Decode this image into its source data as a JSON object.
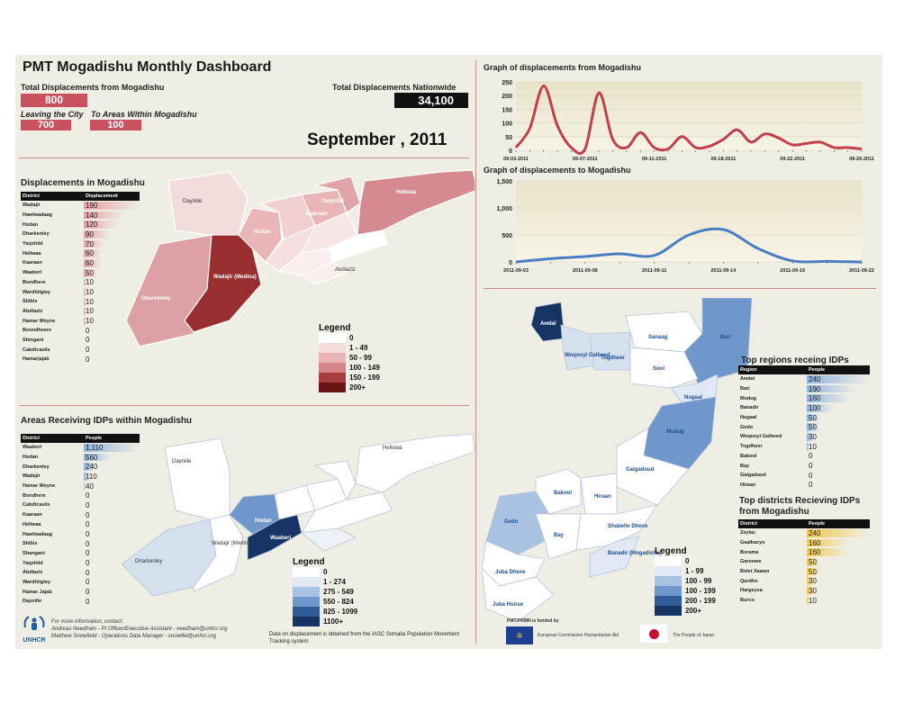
{
  "header": {
    "title": "PMT Mogadishu Monthly Dashboard",
    "total_from_label": "Total Displacements from Mogadishu",
    "total_from_value": "800",
    "leaving_label": "Leaving the City",
    "leaving_value": "700",
    "within_label": "To Areas Within Mogadishu",
    "within_value": "100",
    "nationwide_label": "Total Displacements Nationwide",
    "nationwide_value": "34,100",
    "month": "September , 2011"
  },
  "graph_from": {
    "title": "Graph of displacements from Mogadishu",
    "yticks": [
      "250",
      "200",
      "150",
      "100",
      "50",
      "0"
    ],
    "xticks": [
      "09-03-2011",
      "09-07-2011",
      "09-11-2011",
      "09-18-2011",
      "09-22-2011",
      "09-26-2011"
    ],
    "color": "#c0404c"
  },
  "graph_to": {
    "title": "Graph of displacements to Mogadishu",
    "yticks": [
      "1,500",
      "1,000",
      "500",
      "0"
    ],
    "xticks": [
      "2011-09-03",
      "2011-09-08",
      "2011-09-11",
      "2011-09-14",
      "2011-09-19",
      "2011-09-22"
    ],
    "color": "#4a7ec4"
  },
  "chart_data": [
    {
      "type": "line",
      "title": "Graph of displacements from Mogadishu",
      "ylim": [
        0,
        250
      ],
      "x": [
        "09-01",
        "09-02",
        "09-03",
        "09-04",
        "09-05",
        "09-06",
        "09-07",
        "09-08",
        "09-09",
        "09-10",
        "09-11",
        "09-12",
        "09-13",
        "09-14",
        "09-15",
        "09-16",
        "09-17",
        "09-18",
        "09-19",
        "09-20",
        "09-21",
        "09-22",
        "09-23",
        "09-24",
        "09-25",
        "09-26"
      ],
      "values": [
        10,
        80,
        235,
        90,
        10,
        5,
        210,
        40,
        10,
        65,
        10,
        5,
        50,
        10,
        15,
        40,
        75,
        30,
        60,
        45,
        20,
        25,
        30,
        10,
        10,
        5
      ]
    },
    {
      "type": "line",
      "title": "Graph of displacements to Mogadishu",
      "ylim": [
        0,
        1500
      ],
      "x": [
        "2011-09-03",
        "2011-09-05",
        "2011-09-07",
        "2011-09-09",
        "2011-09-11",
        "2011-09-13",
        "2011-09-14",
        "2011-09-16",
        "2011-09-18",
        "2011-09-20",
        "2011-09-22"
      ],
      "values": [
        0,
        60,
        100,
        150,
        120,
        500,
        600,
        250,
        20,
        10,
        0
      ]
    }
  ],
  "displacements": {
    "title": "Displacements in Mogadishu",
    "col1": "District",
    "col2": "Displacement",
    "bar_color": "#e8a0a8",
    "max": 190,
    "rows": [
      {
        "district": "Wadajir",
        "value": "190",
        "n": 190
      },
      {
        "district": "Hawlwadaag",
        "value": "140",
        "n": 140
      },
      {
        "district": "Hodan",
        "value": "120",
        "n": 120
      },
      {
        "district": "Dharkenley",
        "value": "90",
        "n": 90
      },
      {
        "district": "Yaqshiid",
        "value": "70",
        "n": 70
      },
      {
        "district": "Heliwaa",
        "value": "60",
        "n": 60
      },
      {
        "district": "Kaaraan",
        "value": "60",
        "n": 60
      },
      {
        "district": "Waaberi",
        "value": "50",
        "n": 50
      },
      {
        "district": "Bondhere",
        "value": "10",
        "n": 10
      },
      {
        "district": "Wardhiigley",
        "value": "10",
        "n": 10
      },
      {
        "district": "Shibis",
        "value": "10",
        "n": 10
      },
      {
        "district": "Abdiaziz",
        "value": "10",
        "n": 10
      },
      {
        "district": "Hamar Weyne",
        "value": "10",
        "n": 10
      },
      {
        "district": "Boondheere",
        "value": "0",
        "n": 0
      },
      {
        "district": "Shingani",
        "value": "0",
        "n": 0
      },
      {
        "district": "Cabdicasiis",
        "value": "0",
        "n": 0
      },
      {
        "district": "Hamarjajab",
        "value": "0",
        "n": 0
      }
    ]
  },
  "legend_red": {
    "title": "Legend",
    "items": [
      {
        "label": "0",
        "color": "#ffffff"
      },
      {
        "label": "1 - 49",
        "color": "#f4dcdc"
      },
      {
        "label": "50 - 99",
        "color": "#e9b5b7"
      },
      {
        "label": "100 - 149",
        "color": "#d58487"
      },
      {
        "label": "150 - 199",
        "color": "#a83c3e"
      },
      {
        "label": "200+",
        "color": "#6b1416"
      }
    ]
  },
  "receiving": {
    "title": "Areas Receiving IDPs within Mogadishu",
    "col1": "District",
    "col2": "People",
    "bar_color": "#8fb3dd",
    "max": 1110,
    "rows": [
      {
        "district": "Waaberi",
        "value": "1,110",
        "n": 1110
      },
      {
        "district": "Hodan",
        "value": "560",
        "n": 560
      },
      {
        "district": "Dharkenley",
        "value": "240",
        "n": 240
      },
      {
        "district": "Wadajir",
        "value": "110",
        "n": 110
      },
      {
        "district": "Hamar Weyne",
        "value": "40",
        "n": 40
      },
      {
        "district": "Bondhere",
        "value": "0",
        "n": 0
      },
      {
        "district": "Cabdicasiis",
        "value": "0",
        "n": 0
      },
      {
        "district": "Kaaraan",
        "value": "0",
        "n": 0
      },
      {
        "district": "Heliwaa",
        "value": "0",
        "n": 0
      },
      {
        "district": "Hawlwadaag",
        "value": "0",
        "n": 0
      },
      {
        "district": "Shibis",
        "value": "0",
        "n": 0
      },
      {
        "district": "Shangani",
        "value": "0",
        "n": 0
      },
      {
        "district": "Yaqshiid",
        "value": "0",
        "n": 0
      },
      {
        "district": "Abdiaziz",
        "value": "0",
        "n": 0
      },
      {
        "district": "Wardhiigley",
        "value": "0",
        "n": 0
      },
      {
        "district": "Hamar Jajab",
        "value": "0",
        "n": 0
      },
      {
        "district": "Dayniile",
        "value": "0",
        "n": 0
      }
    ]
  },
  "legend_blue_mog": {
    "title": "Legend",
    "items": [
      {
        "label": "0",
        "color": "#ffffff"
      },
      {
        "label": "1 - 274",
        "color": "#dfe8f4"
      },
      {
        "label": "275 - 549",
        "color": "#a9c2e2"
      },
      {
        "label": "550 - 824",
        "color": "#6f97cb"
      },
      {
        "label": "825 - 1099",
        "color": "#2f5c98"
      },
      {
        "label": "1100+",
        "color": "#163564"
      }
    ]
  },
  "legend_blue_som": {
    "title": "Legend",
    "items": [
      {
        "label": "0",
        "color": "#ffffff"
      },
      {
        "label": "1 - 99",
        "color": "#dfe8f4"
      },
      {
        "label": "100 - 99",
        "color": "#a9c2e2"
      },
      {
        "label": "100 - 199",
        "color": "#6f97cb"
      },
      {
        "label": "200 - 199",
        "color": "#2f5c98"
      },
      {
        "label": "200+",
        "color": "#163564"
      }
    ]
  },
  "top_regions": {
    "title": "Top regions receing IDPs",
    "col1": "Region",
    "col2": "People",
    "bar_color": "#8fb3dd",
    "max": 240,
    "rows": [
      {
        "name": "Awdal",
        "value": "240",
        "n": 240
      },
      {
        "name": "Bari",
        "value": "190",
        "n": 190
      },
      {
        "name": "Mudug",
        "value": "160",
        "n": 160
      },
      {
        "name": "Banadir",
        "value": "100",
        "n": 100
      },
      {
        "name": "Nugaal",
        "value": "50",
        "n": 50
      },
      {
        "name": "Gedo",
        "value": "50",
        "n": 50
      },
      {
        "name": "Woqooyi Galbeed",
        "value": "30",
        "n": 30
      },
      {
        "name": "Togdheer",
        "value": "10",
        "n": 10
      },
      {
        "name": "Bakool",
        "value": "0",
        "n": 0
      },
      {
        "name": "Bay",
        "value": "0",
        "n": 0
      },
      {
        "name": "Galgaduud",
        "value": "0",
        "n": 0
      },
      {
        "name": "Hiraan",
        "value": "0",
        "n": 0
      }
    ]
  },
  "top_districts": {
    "title": "Top districts Recieving IDPs from Mogadishu",
    "col1": "District",
    "col2": "People",
    "bar_color": "#f2c94c",
    "max": 240,
    "rows": [
      {
        "name": "Zeylac",
        "value": "240",
        "n": 240
      },
      {
        "name": "Gaalkacyo",
        "value": "160",
        "n": 160
      },
      {
        "name": "Borama",
        "value": "160",
        "n": 160
      },
      {
        "name": "Garoowe",
        "value": "50",
        "n": 50
      },
      {
        "name": "Belet Xaawo",
        "value": "50",
        "n": 50
      },
      {
        "name": "Qardho",
        "value": "30",
        "n": 30
      },
      {
        "name": "Hargeysa",
        "value": "30",
        "n": 30
      },
      {
        "name": "Burco",
        "value": "10",
        "n": 10
      }
    ]
  },
  "mog_labels": {
    "heliwaa": "Heliwaa",
    "dayniile": "Dayniile",
    "yaqshiid": "Yaqshiid",
    "kaaraan": "Kaaraan",
    "hodan": "Hodan",
    "wadajir": "Wadajir (Medina)",
    "dharkenley": "Dharkenley",
    "waaberi": "Waaberi",
    "abdiaziz": "Abdiaziz"
  },
  "somalia_labels": {
    "awdal": "Awdal",
    "woqooyi": "Woqooyi Galbeed",
    "togdheer": "Togdheer",
    "sanaag": "Sanaag",
    "bari": "Bari",
    "sool": "Sool",
    "nugaal": "Nugaal",
    "mudug": "Mudug",
    "galgaduud": "Galgaduud",
    "bakool": "Bakool",
    "hiraan": "Hiraan",
    "gedo": "Gedo",
    "bay": "Bay",
    "shabelle_dhexe": "Shabelle Dhexe",
    "banadir": "Banadir (Mogadishu)",
    "juba_dhexe": "Juba Dhexe",
    "juba_hoose": "Juba Hoose"
  },
  "footer": {
    "contact_title": "For more information, contact:",
    "contact_1": "Andreas Needham - PI Officer/Executive Assistant - needham@unhcr.org",
    "contact_2": "Matthew Snowfield - Operations Data Manager - snowfiel@unhcr.org",
    "logo_text": "UNHCR",
    "source": "Data on displacement is obtained from the IASC Somalia Population Movement Tracking system",
    "funded": "PMT/PRMN is funded by",
    "eu": "European Commission Humanitarian Aid",
    "japan": "The People of Japan"
  }
}
